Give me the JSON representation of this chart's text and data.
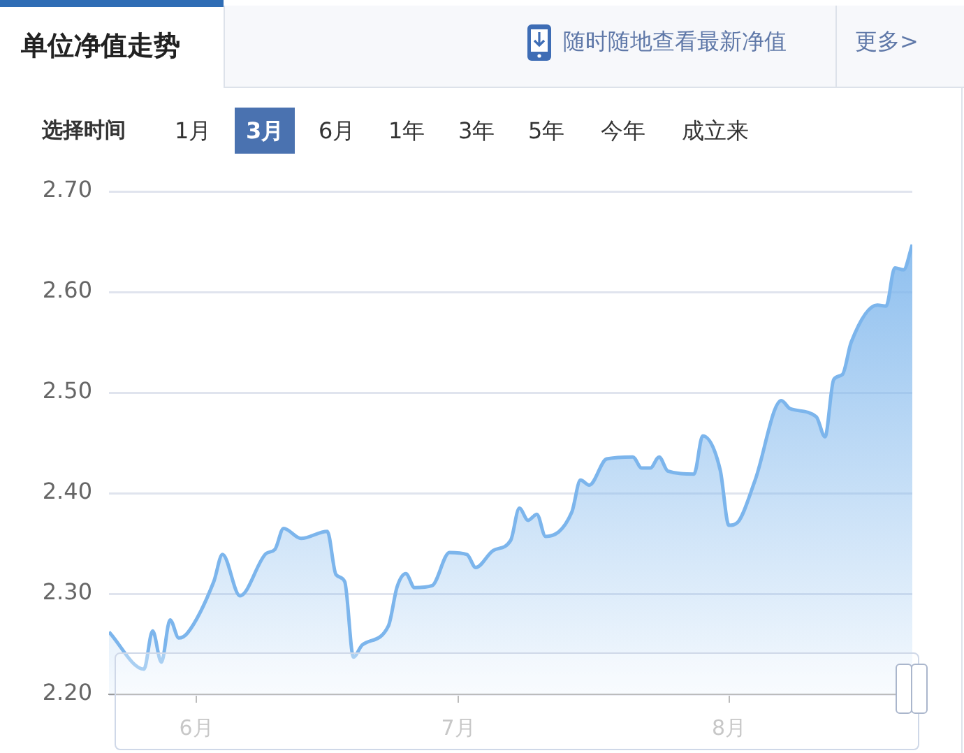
{
  "chart_data": {
    "type": "area",
    "title": "单位净值走势",
    "annotations": [
      "随时随地查看最新净值",
      "更多>",
      "选择时间",
      "1月",
      "3月",
      "6月",
      "1年",
      "3年",
      "5年",
      "今年",
      "成立来"
    ],
    "x": [
      "--05-22",
      "--05-26",
      "--05-27",
      "--05-28",
      "--05-29",
      "--05-30",
      "--05-31",
      "--06-03",
      "--06-04",
      "--06-06",
      "--06-09",
      "--06-10",
      "--06-11",
      "--06-13",
      "--06-16",
      "--06-17",
      "--06-18",
      "--06-19",
      "--06-20",
      "--06-23",
      "--06-24",
      "--06-25",
      "--06-26",
      "--06-28",
      "--06-30",
      "--07-02",
      "--07-03",
      "--07-05",
      "--07-07",
      "--07-08",
      "--07-09",
      "--07-10",
      "--07-11",
      "--07-14",
      "--07-15",
      "--07-16",
      "--07-18",
      "--07-21",
      "--07-22",
      "--07-23",
      "--07-24",
      "--07-25",
      "--07-28",
      "--07-29",
      "--07-31",
      "--08-01",
      "--08-02",
      "--08-04",
      "--08-07",
      "--08-08",
      "--08-11",
      "--08-12",
      "--08-13",
      "--08-14",
      "--08-15",
      "--08-18",
      "--08-19",
      "--08-20",
      "--08-21",
      "--08-22"
    ],
    "series": [
      {
        "color": "#7cb5ec",
        "values": [
          2.262,
          2.225,
          2.263,
          2.232,
          2.274,
          2.256,
          2.261,
          2.312,
          2.339,
          2.298,
          2.34,
          2.344,
          2.365,
          2.355,
          2.362,
          2.319,
          2.312,
          2.237,
          2.249,
          2.268,
          2.307,
          2.32,
          2.306,
          2.308,
          2.341,
          2.339,
          2.326,
          2.343,
          2.353,
          2.385,
          2.373,
          2.379,
          2.357,
          2.381,
          2.413,
          2.408,
          2.434,
          2.436,
          2.425,
          2.425,
          2.436,
          2.422,
          2.419,
          2.457,
          2.423,
          2.368,
          2.371,
          2.413,
          2.492,
          2.484,
          2.476,
          2.456,
          2.513,
          2.518,
          2.55,
          2.587,
          2.586,
          2.624,
          2.622,
          2.647
        ]
      }
    ],
    "xlim": [
      "--05-22",
      "--08-22"
    ],
    "xticks": [
      {
        "value": "--06-01",
        "label": "6月"
      },
      {
        "value": "--07-01",
        "label": "7月"
      },
      {
        "value": "--08-01",
        "label": "8月"
      }
    ],
    "ylim": [
      2.2,
      2.7
    ],
    "yticks": [
      {
        "value": 2.2,
        "label": "2.20"
      },
      {
        "value": 2.3,
        "label": "2.30"
      },
      {
        "value": 2.4,
        "label": "2.40"
      },
      {
        "value": 2.5,
        "label": "2.50"
      },
      {
        "value": 2.6,
        "label": "2.60"
      },
      {
        "value": 2.7,
        "label": "2.70"
      }
    ],
    "grid": "y",
    "legend": false,
    "marker": "none",
    "line_style": "solid"
  }
}
